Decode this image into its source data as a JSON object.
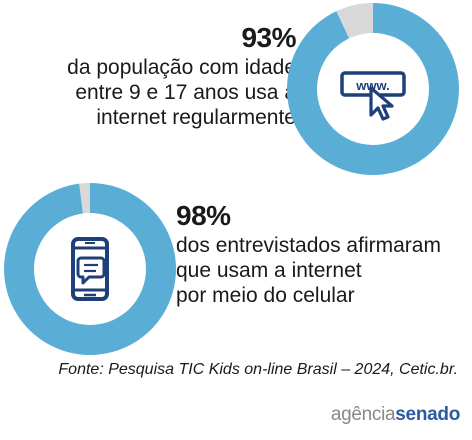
{
  "chart_data": [
    {
      "type": "pie",
      "value": 93,
      "values": [
        93,
        7
      ],
      "headline": "93%",
      "description_lines": [
        "da população com idade",
        "entre 9 e 17 anos usa a",
        "internet regularmente"
      ],
      "icon": "www-cursor-icon"
    },
    {
      "type": "pie",
      "value": 98,
      "values": [
        98,
        2
      ],
      "headline": "98%",
      "description_lines": [
        "dos entrevistados afirmaram",
        "que usam a internet",
        "por meio do celular"
      ],
      "icon": "smartphone-chat-icon"
    }
  ],
  "colors": {
    "filled": "#5aaed6",
    "remainder": "#d9d9d9",
    "icon": "#1f3f7a",
    "hole": "#ffffff"
  },
  "source": "Fonte: Pesquisa TIC Kids on-line Brasil – 2024, Cetic.br.",
  "logo": {
    "part1": "agência",
    "part2": "senado"
  }
}
